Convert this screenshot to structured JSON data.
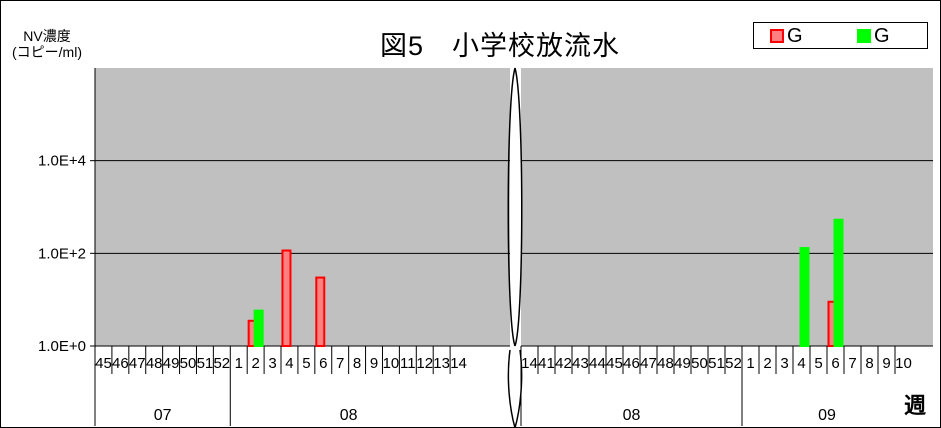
{
  "chart_data": {
    "type": "bar",
    "title": "図5　小学校放流水",
    "ylabel": "NV濃度\n(コピー/ml)",
    "xlabel": "週",
    "yscale": "log",
    "ylim": [
      1,
      1000000
    ],
    "yticks": [
      "1.0E+0",
      "1.0E+2",
      "1.0E+4"
    ],
    "legend": {
      "position": "top-right"
    },
    "series": [
      {
        "name": "G",
        "color": "#ff0000",
        "fill": "#ff8080"
      },
      {
        "name": "G",
        "color": "#00ff00",
        "fill": "#00ff00"
      }
    ],
    "panels": [
      {
        "weeks": [
          "45",
          "46",
          "47",
          "48",
          "49",
          "50",
          "51",
          "52",
          "1",
          "2",
          "3",
          "4",
          "5",
          "6",
          "7",
          "8",
          "9",
          "10",
          "11",
          "12",
          "13",
          "14"
        ],
        "years": [
          {
            "label": "07",
            "start": 0,
            "end": 8
          },
          {
            "label": "08",
            "start": 8,
            "end": 22
          }
        ],
        "bars": [
          {
            "week": "2",
            "series": 0,
            "value": 3.5
          },
          {
            "week": "2",
            "series": 1,
            "value": 5.8
          },
          {
            "week": "4",
            "series": 0,
            "value": 115
          },
          {
            "week": "6",
            "series": 0,
            "value": 30
          }
        ]
      },
      {
        "weeks": [
          "14",
          "41",
          "42",
          "43",
          "44",
          "45",
          "46",
          "47",
          "48",
          "49",
          "50",
          "51",
          "52",
          "1",
          "2",
          "3",
          "4",
          "5",
          "6",
          "7",
          "8",
          "9",
          "10"
        ],
        "years": [
          {
            "label": "08",
            "start": 0,
            "end": 13
          },
          {
            "label": "09",
            "start": 13,
            "end": 23
          }
        ],
        "bars": [
          {
            "week": "4",
            "series": 1,
            "value": 130
          },
          {
            "week": "6",
            "series": 0,
            "value": 9
          },
          {
            "week": "6",
            "series": 1,
            "value": 530
          }
        ]
      }
    ]
  }
}
